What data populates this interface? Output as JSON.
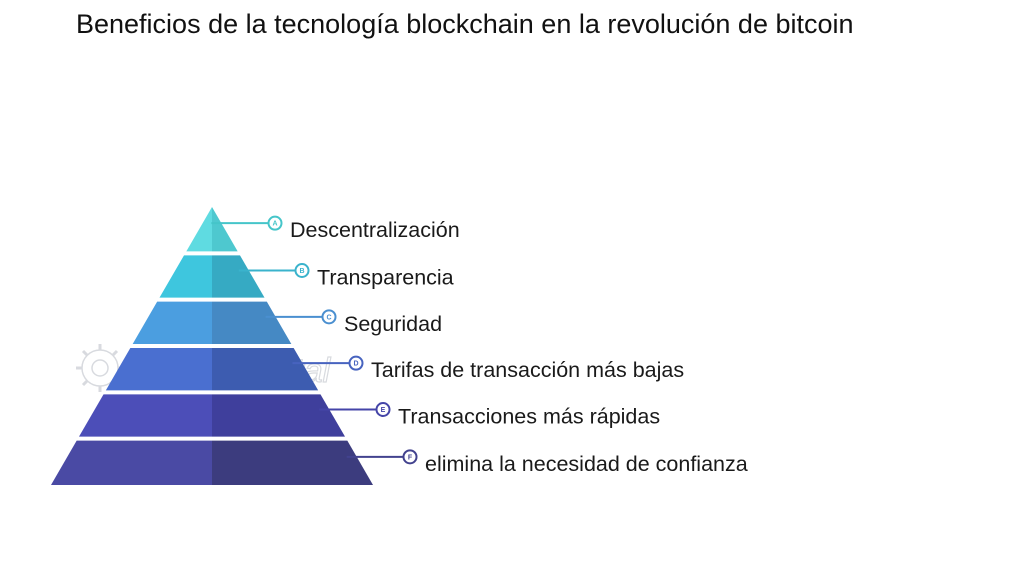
{
  "title": "Beneficios de la tecnología blockchain en la revolución de bitcoin",
  "watermark": "FasterCapital",
  "tiers": [
    {
      "marker": "A",
      "label": "Descentralización",
      "color_left": "#5fdbe1",
      "color_right": "#4ec8cf",
      "line_color": "#45c5c9"
    },
    {
      "marker": "B",
      "label": "Transparencia",
      "color_left": "#3ec6de",
      "color_right": "#36aac3",
      "line_color": "#3ab3cc"
    },
    {
      "marker": "C",
      "label": "Seguridad",
      "color_left": "#4b9ee0",
      "color_right": "#4589c4",
      "line_color": "#4a8fd0"
    },
    {
      "marker": "D",
      "label": "Tarifas de transacción más bajas",
      "color_left": "#4a6fd0",
      "color_right": "#3d5cb0",
      "line_color": "#4763bf"
    },
    {
      "marker": "E",
      "label": "Transacciones más rápidas",
      "color_left": "#4c4eb8",
      "color_right": "#3f3f9c",
      "line_color": "#4545a8"
    },
    {
      "marker": "F",
      "label": "elimina la necesidad de confianza",
      "color_left": "#4a4aa4",
      "color_right": "#3c3c7e",
      "line_color": "#42428e"
    }
  ]
}
